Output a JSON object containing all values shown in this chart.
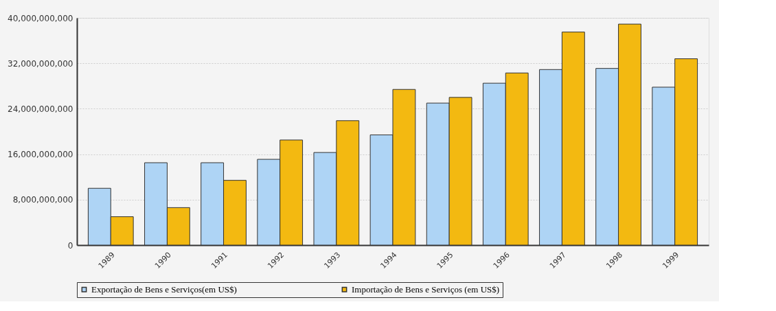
{
  "chart_data": {
    "type": "bar",
    "categories": [
      "1989",
      "1990",
      "1991",
      "1992",
      "1993",
      "1994",
      "1995",
      "1996",
      "1997",
      "1998",
      "1999"
    ],
    "series": [
      {
        "name": "Exportação de Bens e Serviços(em US$)",
        "color": "#aed4f5",
        "values": [
          10000000000,
          14500000000,
          14500000000,
          15100000000,
          16300000000,
          19400000000,
          25000000000,
          28500000000,
          30900000000,
          31100000000,
          27800000000
        ]
      },
      {
        "name": "Importação de Bens e Serviços (em US$)",
        "color": "#f3b911",
        "values": [
          5000000000,
          6600000000,
          11400000000,
          18500000000,
          21900000000,
          27400000000,
          26000000000,
          30300000000,
          37500000000,
          38900000000,
          32800000000
        ]
      }
    ],
    "ylim": [
      0,
      40000000000
    ],
    "yticks": [
      0,
      {
        "value": 8000000000,
        "label": "8,000,000,000"
      },
      {
        "value": 16000000000,
        "label": "16,000,000,000"
      },
      {
        "value": 24000000000,
        "label": "24,000,000,000"
      },
      {
        "value": 32000000000,
        "label": "32,000,000,000"
      },
      {
        "value": 40000000000,
        "label": "40,000,000,000"
      }
    ],
    "grid": "y",
    "legend": "bottom"
  }
}
